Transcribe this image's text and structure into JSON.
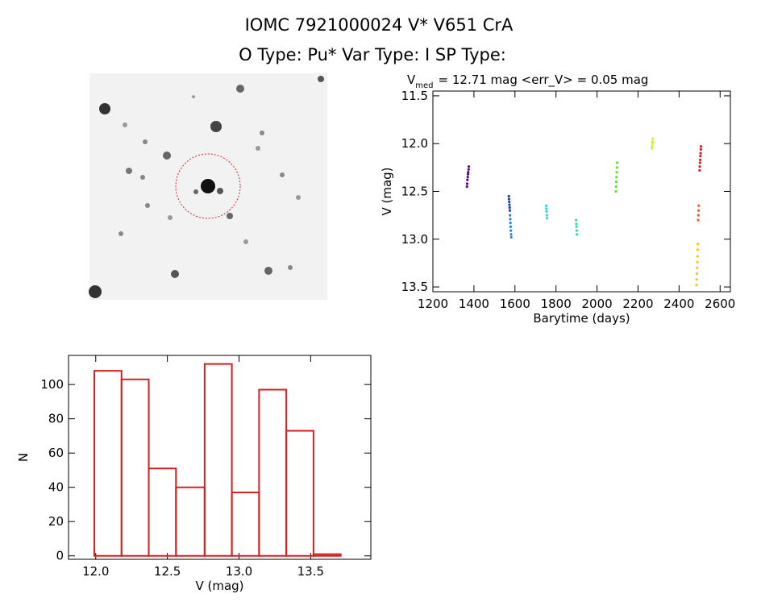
{
  "header": {
    "line1": "IOMC 7921000024    V* V651 CrA",
    "line2": "O Type: Pu*   Var Type: I   SP Type:"
  },
  "chart_data": [
    {
      "type": "scatter",
      "title": "V",
      "title_subscript": "med",
      "title_rest": "= 12.71 mag <err_V> = 0.05 mag",
      "xlabel": "Barytime (days)",
      "ylabel": "V (mag)",
      "xlim": [
        1200,
        2650
      ],
      "ylim": [
        11.45,
        13.55
      ],
      "y_reversed": true,
      "xticks": [
        1200,
        1400,
        1600,
        1800,
        2000,
        2200,
        2400,
        2600
      ],
      "yticks": [
        11.5,
        {
          "value": 12.0,
          "label": "12.0"
        },
        12.5,
        {
          "value": 13.0,
          "label": "13.0"
        },
        13.5
      ],
      "series": [
        {
          "color": "#5a0a7a",
          "x": [
            1366,
            1367,
            1368,
            1370,
            1371,
            1372,
            1374,
            1375
          ],
          "y": [
            12.45,
            12.42,
            12.38,
            12.35,
            12.32,
            12.3,
            12.27,
            12.24
          ]
        },
        {
          "color": "#1f3fbf",
          "x": [
            1570,
            1571,
            1572,
            1573,
            1574,
            1575
          ],
          "y": [
            12.55,
            12.58,
            12.61,
            12.64,
            12.67,
            12.7
          ]
        },
        {
          "color": "#2a7fd0",
          "x": [
            1576,
            1577,
            1578,
            1579,
            1580,
            1581,
            1582
          ],
          "y": [
            12.75,
            12.79,
            12.83,
            12.87,
            12.91,
            12.95,
            12.98
          ]
        },
        {
          "color": "#33d6e0",
          "x": [
            1752,
            1753,
            1754,
            1755,
            1756
          ],
          "y": [
            12.65,
            12.68,
            12.71,
            12.75,
            12.78
          ]
        },
        {
          "color": "#33e0a0",
          "x": [
            1898,
            1899,
            1900,
            1901,
            1902
          ],
          "y": [
            12.8,
            12.84,
            12.87,
            12.91,
            12.95
          ]
        },
        {
          "color": "#66e033",
          "x": [
            2092,
            2093,
            2094,
            2095,
            2096,
            2097,
            2098
          ],
          "y": [
            12.5,
            12.45,
            12.4,
            12.35,
            12.3,
            12.25,
            12.2
          ]
        },
        {
          "color": "#ccf033",
          "x": [
            2268,
            2269,
            2270,
            2271,
            2272
          ],
          "y": [
            12.05,
            12.03,
            12.0,
            11.98,
            11.95
          ]
        },
        {
          "color": "#f0c81e",
          "x": [
            2485,
            2486,
            2487,
            2488,
            2489,
            2490,
            2491,
            2492
          ],
          "y": [
            13.48,
            13.42,
            13.36,
            13.3,
            13.24,
            13.18,
            13.11,
            13.05
          ]
        },
        {
          "color": "#e8641e",
          "x": [
            2493,
            2494,
            2495,
            2496
          ],
          "y": [
            12.8,
            12.75,
            12.7,
            12.65
          ]
        },
        {
          "color": "#d71e1e",
          "x": [
            2500,
            2501,
            2502,
            2503,
            2504,
            2505,
            2506,
            2507
          ],
          "y": [
            12.28,
            12.24,
            12.2,
            12.17,
            12.13,
            12.1,
            12.06,
            12.03
          ]
        }
      ]
    },
    {
      "type": "histogram",
      "xlabel": "V (mag)",
      "ylabel": "N",
      "color": "#d42020",
      "bins": [
        11.99,
        12.18,
        12.37,
        12.56,
        12.76,
        12.95,
        13.14,
        13.33,
        13.52,
        13.71
      ],
      "values": [
        108,
        103,
        51,
        40,
        112,
        37,
        97,
        73,
        1
      ],
      "xlim": [
        11.81,
        13.92
      ],
      "ylim": [
        -2,
        117
      ],
      "xticks": [
        {
          "value": 12.0,
          "label": "12.0"
        },
        12.5,
        {
          "value": 13.0,
          "label": "13.0"
        },
        13.5
      ],
      "yticks": [
        0,
        20,
        40,
        60,
        80,
        100
      ]
    }
  ]
}
